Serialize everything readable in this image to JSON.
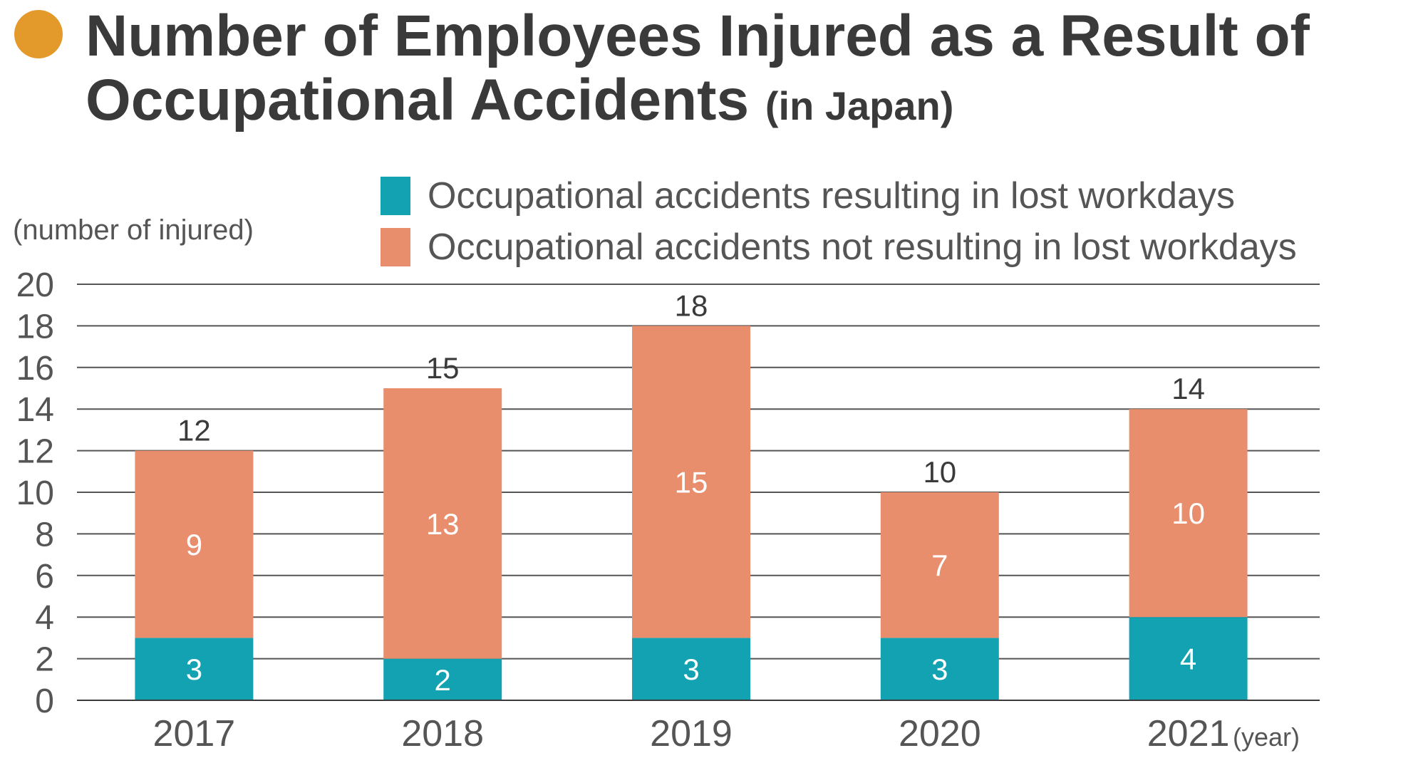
{
  "title": {
    "line1": "Number of Employees Injured as a Result of",
    "line2": "Occupational Accidents",
    "suffix": "(in Japan)",
    "dot_color": "#E49A2A"
  },
  "chart_data": {
    "type": "bar",
    "stacked": true,
    "title": "Number of Employees Injured as a Result of Occupational Accidents (in Japan)",
    "ylabel": "(number of injured)",
    "xlabel": "(year)",
    "ylim": [
      0,
      20
    ],
    "yticks": [
      0,
      2,
      4,
      6,
      8,
      10,
      12,
      14,
      16,
      18,
      20
    ],
    "grid": true,
    "legend_position": "top-right",
    "categories": [
      "2017",
      "2018",
      "2019",
      "2020",
      "2021"
    ],
    "series": [
      {
        "name": "Occupational accidents resulting in lost workdays",
        "color": "#13A2B1",
        "values": [
          3,
          2,
          3,
          3,
          4
        ]
      },
      {
        "name": "Occupational accidents not resulting in lost workdays",
        "color": "#E88E6D",
        "values": [
          9,
          13,
          15,
          7,
          10
        ]
      }
    ],
    "totals": [
      12,
      15,
      18,
      10,
      14
    ]
  }
}
